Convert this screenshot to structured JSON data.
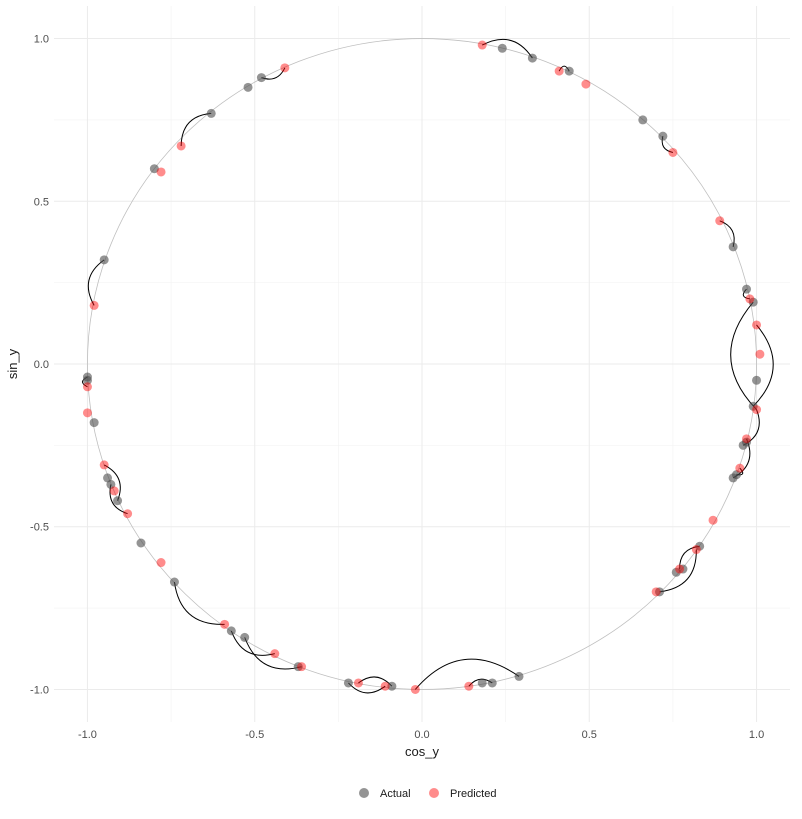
{
  "chart_data": {
    "type": "scatter",
    "title": "",
    "xlabel": "cos_y",
    "ylabel": "sin_y",
    "xlim": [
      -1.1,
      1.1
    ],
    "ylim": [
      -1.1,
      1.1
    ],
    "x_ticks": [
      -1.0,
      -0.5,
      0.0,
      0.5,
      1.0
    ],
    "y_ticks": [
      -1.0,
      -0.5,
      0.0,
      0.5,
      1.0
    ],
    "x_tick_labels": [
      "-1.0",
      "-0.5",
      "0.0",
      "0.5",
      "1.0"
    ],
    "y_tick_labels": [
      "-1.0",
      "-0.5",
      "0.0",
      "0.5",
      "1.0"
    ],
    "grid": true,
    "legend_position": "bottom",
    "reference_circle": true,
    "series": [
      {
        "name": "Actual",
        "color": "#4d4d4d",
        "points": [
          [
            0.24,
            0.97
          ],
          [
            0.33,
            0.94
          ],
          [
            0.44,
            0.9
          ],
          [
            0.66,
            0.75
          ],
          [
            0.72,
            0.7
          ],
          [
            0.93,
            0.36
          ],
          [
            0.97,
            0.23
          ],
          [
            0.99,
            0.19
          ],
          [
            1.0,
            -0.05
          ],
          [
            0.99,
            -0.13
          ],
          [
            0.97,
            -0.24
          ],
          [
            0.96,
            -0.25
          ],
          [
            0.93,
            -0.35
          ],
          [
            0.94,
            -0.34
          ],
          [
            0.83,
            -0.56
          ],
          [
            0.78,
            -0.63
          ],
          [
            0.76,
            -0.64
          ],
          [
            0.71,
            -0.7
          ],
          [
            0.29,
            -0.96
          ],
          [
            0.21,
            -0.98
          ],
          [
            0.18,
            -0.98
          ],
          [
            -0.09,
            -0.99
          ],
          [
            -0.22,
            -0.98
          ],
          [
            -0.37,
            -0.93
          ],
          [
            -0.53,
            -0.84
          ],
          [
            -0.57,
            -0.82
          ],
          [
            -0.74,
            -0.67
          ],
          [
            -0.84,
            -0.55
          ],
          [
            -0.91,
            -0.42
          ],
          [
            -0.93,
            -0.37
          ],
          [
            -0.94,
            -0.35
          ],
          [
            -0.98,
            -0.18
          ],
          [
            -1.0,
            -0.04
          ],
          [
            -1.0,
            -0.05
          ],
          [
            -0.95,
            0.32
          ],
          [
            -0.8,
            0.6
          ],
          [
            -0.63,
            0.77
          ],
          [
            -0.48,
            0.88
          ],
          [
            -0.52,
            0.85
          ]
        ]
      },
      {
        "name": "Predicted",
        "color": "#ff0000",
        "points": [
          [
            0.18,
            0.98
          ],
          [
            0.41,
            0.9
          ],
          [
            0.49,
            0.86
          ],
          [
            0.75,
            0.65
          ],
          [
            0.89,
            0.44
          ],
          [
            0.98,
            0.2
          ],
          [
            1.0,
            0.12
          ],
          [
            1.01,
            0.03
          ],
          [
            1.0,
            -0.14
          ],
          [
            0.97,
            -0.23
          ],
          [
            0.95,
            -0.32
          ],
          [
            0.87,
            -0.48
          ],
          [
            0.82,
            -0.57
          ],
          [
            0.77,
            -0.63
          ],
          [
            0.7,
            -0.7
          ],
          [
            0.14,
            -0.99
          ],
          [
            -0.02,
            -1.0
          ],
          [
            -0.11,
            -0.99
          ],
          [
            -0.19,
            -0.98
          ],
          [
            -0.36,
            -0.93
          ],
          [
            -0.44,
            -0.89
          ],
          [
            -0.59,
            -0.8
          ],
          [
            -0.78,
            -0.61
          ],
          [
            -0.88,
            -0.46
          ],
          [
            -0.92,
            -0.39
          ],
          [
            -0.95,
            -0.31
          ],
          [
            -1.0,
            -0.15
          ],
          [
            -1.0,
            -0.07
          ],
          [
            -0.98,
            0.18
          ],
          [
            -0.78,
            0.59
          ],
          [
            -0.72,
            0.67
          ],
          [
            -0.41,
            0.91
          ]
        ]
      }
    ],
    "connections": [
      [
        [
          0.33,
          0.94
        ],
        [
          0.18,
          0.98
        ]
      ],
      [
        [
          0.44,
          0.9
        ],
        [
          0.41,
          0.9
        ]
      ],
      [
        [
          0.72,
          0.7
        ],
        [
          0.75,
          0.65
        ]
      ],
      [
        [
          0.93,
          0.36
        ],
        [
          0.89,
          0.44
        ]
      ],
      [
        [
          0.97,
          0.23
        ],
        [
          0.98,
          0.2
        ]
      ],
      [
        [
          0.99,
          0.19
        ],
        [
          1.0,
          -0.14
        ]
      ],
      [
        [
          0.99,
          -0.13
        ],
        [
          1.0,
          0.12
        ]
      ],
      [
        [
          0.96,
          -0.25
        ],
        [
          1.0,
          -0.14
        ]
      ],
      [
        [
          0.93,
          -0.35
        ],
        [
          0.97,
          -0.23
        ]
      ],
      [
        [
          0.94,
          -0.34
        ],
        [
          0.95,
          -0.32
        ]
      ],
      [
        [
          0.83,
          -0.56
        ],
        [
          0.77,
          -0.63
        ]
      ],
      [
        [
          0.71,
          -0.7
        ],
        [
          0.82,
          -0.57
        ]
      ],
      [
        [
          0.29,
          -0.96
        ],
        [
          -0.02,
          -1.0
        ]
      ],
      [
        [
          0.21,
          -0.98
        ],
        [
          0.14,
          -0.99
        ]
      ],
      [
        [
          -0.09,
          -0.99
        ],
        [
          -0.19,
          -0.98
        ]
      ],
      [
        [
          -0.22,
          -0.98
        ],
        [
          -0.11,
          -0.99
        ]
      ],
      [
        [
          -0.53,
          -0.84
        ],
        [
          -0.36,
          -0.93
        ]
      ],
      [
        [
          -0.57,
          -0.82
        ],
        [
          -0.44,
          -0.89
        ]
      ],
      [
        [
          -0.74,
          -0.67
        ],
        [
          -0.59,
          -0.8
        ]
      ],
      [
        [
          -0.91,
          -0.42
        ],
        [
          -0.95,
          -0.31
        ]
      ],
      [
        [
          -0.93,
          -0.37
        ],
        [
          -0.88,
          -0.46
        ]
      ],
      [
        [
          -1.0,
          -0.04
        ],
        [
          -1.0,
          -0.07
        ]
      ],
      [
        [
          -0.95,
          0.32
        ],
        [
          -0.98,
          0.18
        ]
      ],
      [
        [
          -0.63,
          0.77
        ],
        [
          -0.72,
          0.67
        ]
      ],
      [
        [
          -0.48,
          0.88
        ],
        [
          -0.41,
          0.91
        ]
      ]
    ]
  }
}
